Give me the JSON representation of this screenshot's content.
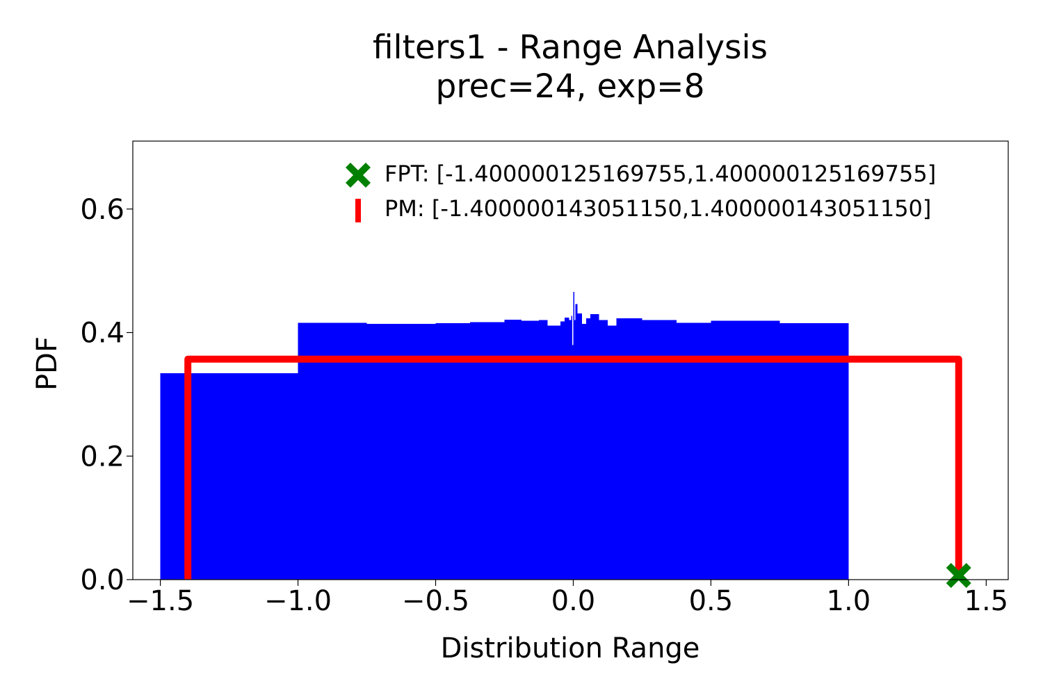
{
  "chart_data": {
    "type": "bar",
    "title_line1": "filters1 - Range Analysis",
    "title_line2": "prec=24, exp=8",
    "xlabel": "Distribution Range",
    "ylabel": "PDF",
    "xlim": [
      -1.6,
      1.58
    ],
    "ylim": [
      0,
      0.71
    ],
    "xticks": [
      -1.5,
      -1.0,
      -0.5,
      0.0,
      0.5,
      1.0,
      1.5
    ],
    "xtick_labels": [
      "−1.5",
      "−1.0",
      "−0.5",
      "0.0",
      "0.5",
      "1.0",
      "1.5"
    ],
    "yticks": [
      0.0,
      0.2,
      0.4,
      0.6
    ],
    "ytick_labels": [
      "0.0",
      "0.2",
      "0.4",
      "0.6"
    ],
    "grid": false,
    "legend_position": "top-right",
    "colors": {
      "histogram": "#0000ff",
      "pm": "#ff0000",
      "fpt": "#008000"
    },
    "histogram": [
      {
        "x0": -1.5,
        "x1": -1.0,
        "y": 0.334
      },
      {
        "x0": -1.0,
        "x1": -0.75,
        "y": 0.416
      },
      {
        "x0": -0.75,
        "x1": -0.5,
        "y": 0.414
      },
      {
        "x0": -0.5,
        "x1": -0.375,
        "y": 0.415
      },
      {
        "x0": -0.375,
        "x1": -0.25,
        "y": 0.417
      },
      {
        "x0": -0.25,
        "x1": -0.1875,
        "y": 0.421
      },
      {
        "x0": -0.1875,
        "x1": -0.125,
        "y": 0.419
      },
      {
        "x0": -0.125,
        "x1": -0.09375,
        "y": 0.42
      },
      {
        "x0": -0.09375,
        "x1": -0.046875,
        "y": 0.411
      },
      {
        "x0": -0.046875,
        "x1": -0.03125,
        "y": 0.418
      },
      {
        "x0": -0.03125,
        "x1": -0.015625,
        "y": 0.424
      },
      {
        "x0": -0.015625,
        "x1": -0.0078125,
        "y": 0.42
      },
      {
        "x0": -0.0078125,
        "x1": -0.00390625,
        "y": 0.427
      },
      {
        "x0": -0.00390625,
        "x1": 0.0,
        "y": 0.38
      },
      {
        "x0": 0.0,
        "x1": 0.00390625,
        "y": 0.466
      },
      {
        "x0": 0.00390625,
        "x1": 0.0078125,
        "y": 0.42
      },
      {
        "x0": 0.0078125,
        "x1": 0.015625,
        "y": 0.446
      },
      {
        "x0": 0.015625,
        "x1": 0.03125,
        "y": 0.431
      },
      {
        "x0": 0.03125,
        "x1": 0.046875,
        "y": 0.414
      },
      {
        "x0": 0.046875,
        "x1": 0.0625,
        "y": 0.423
      },
      {
        "x0": 0.0625,
        "x1": 0.09375,
        "y": 0.43
      },
      {
        "x0": 0.09375,
        "x1": 0.125,
        "y": 0.42
      },
      {
        "x0": 0.125,
        "x1": 0.15625,
        "y": 0.411
      },
      {
        "x0": 0.15625,
        "x1": 0.25,
        "y": 0.423
      },
      {
        "x0": 0.25,
        "x1": 0.375,
        "y": 0.42
      },
      {
        "x0": 0.375,
        "x1": 0.5,
        "y": 0.416
      },
      {
        "x0": 0.5,
        "x1": 0.75,
        "y": 0.419
      },
      {
        "x0": 0.75,
        "x1": 1.0,
        "y": 0.415
      }
    ],
    "pm_range": {
      "label": "PM: [-1.400000143051150,1.400000143051150]",
      "x_min": -1.40000014305115,
      "x_max": 1.40000014305115,
      "y": 0.357
    },
    "fpt_range": {
      "label": "FPT: [-1.400000125169755,1.400000125169755]",
      "x_min": -1.400000125169755,
      "x_max": 1.400000125169755,
      "marker_y": 0.0
    }
  }
}
